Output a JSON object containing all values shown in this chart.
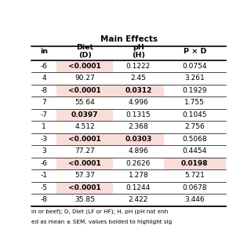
{
  "title": "Main Effects",
  "row_labels": [
    "-6",
    "4",
    "-8",
    "7",
    "-7",
    "1",
    "-3",
    "3",
    "-6",
    "-1",
    "-5",
    "-8"
  ],
  "diet_vals": [
    "<0.0001",
    "90.27",
    "<0.0001",
    "55.64",
    "0.0397",
    "4.512",
    "<0.0001",
    "77.27",
    "<0.0001",
    "57.37",
    "<0.0001",
    "35.85"
  ],
  "ph_vals": [
    "0.1222",
    "2.45",
    "0.0312",
    "4.996",
    "0.1315",
    "2.368",
    "0.0303",
    "4.896",
    "0.2626",
    "1.278",
    "0.1244",
    "2.422"
  ],
  "pxd_vals": [
    "0.0754",
    "3.261",
    "0.1929",
    "1.755",
    "0.1045",
    "2.756",
    "0.5068",
    "0.4454",
    "0.0198",
    "5.721",
    "0.0678",
    "3.446"
  ],
  "diet_bold": [
    true,
    false,
    true,
    false,
    true,
    false,
    true,
    false,
    true,
    false,
    true,
    false
  ],
  "diet_highlight": [
    true,
    false,
    true,
    false,
    true,
    false,
    true,
    false,
    true,
    false,
    true,
    false
  ],
  "ph_bold": [
    false,
    false,
    true,
    false,
    false,
    false,
    true,
    false,
    false,
    false,
    false,
    false
  ],
  "ph_highlight": [
    false,
    false,
    true,
    false,
    false,
    false,
    true,
    false,
    false,
    false,
    false,
    false
  ],
  "pxd_bold": [
    false,
    false,
    false,
    false,
    false,
    false,
    false,
    false,
    true,
    false,
    false,
    false
  ],
  "pxd_highlight": [
    false,
    false,
    false,
    false,
    false,
    false,
    false,
    false,
    true,
    false,
    false,
    false
  ],
  "footer1": "in or beef); D, Diet (LF or HF); H, pH (pH not enh",
  "footer2": "ed as mean ± SEM, values bolded to highlight sig",
  "highlight_color": "#FADDD8",
  "bg_color": "#FFFFFF"
}
